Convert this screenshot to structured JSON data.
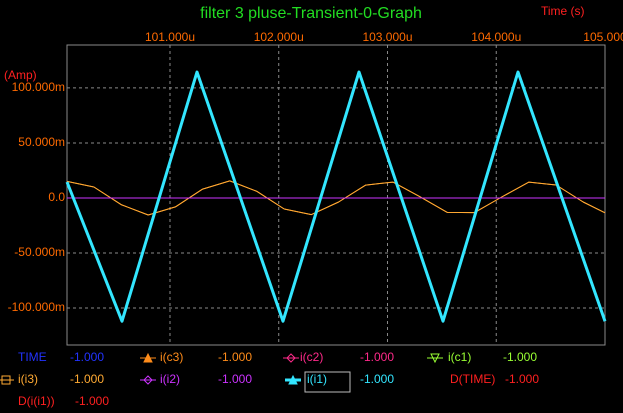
{
  "chart_data": {
    "type": "line",
    "title": "filter 3 pluse-Transient-0-Graph",
    "x_label": "Time  (s)",
    "y_label": "(Amp)",
    "xlim": [
      100.053,
      105
    ],
    "ylim": [
      -0.1336,
      0.139
    ],
    "xticks": [
      {
        "value": 101,
        "label": "101.000u"
      },
      {
        "value": 102,
        "label": "102.000u"
      },
      {
        "value": 103,
        "label": "103.000u"
      },
      {
        "value": 104,
        "label": "104.000u"
      },
      {
        "value": 105,
        "label": "105.000"
      }
    ],
    "yticks": [
      {
        "value": 0.1,
        "label": "100.000m"
      },
      {
        "value": 0.05,
        "label": "50.000m"
      },
      {
        "value": 0,
        "label": "0.0"
      },
      {
        "value": -0.05,
        "label": "-50.000m"
      },
      {
        "value": -0.1,
        "label": "-100.000m"
      }
    ],
    "grid": true,
    "series": [
      {
        "name": "i(c3)",
        "color": "#ff8c1a",
        "marker": "triangle",
        "reading": "-1.000",
        "x": [
          100.053,
          100.3,
          100.55,
          100.8,
          101.05,
          101.3,
          101.55,
          101.8,
          102.05,
          102.3,
          102.55,
          102.8,
          103.05,
          103.3,
          103.55,
          103.8,
          104.05,
          104.3,
          104.55,
          104.8,
          105.0
        ],
        "values": [
          0.0151,
          0.01,
          -0.006,
          -0.0155,
          -0.0081,
          0.0081,
          0.0155,
          0.006,
          -0.01,
          -0.0151,
          -0.0037,
          0.0117,
          0.0144,
          0.0011,
          -0.0131,
          -0.0133,
          0.0009,
          0.0144,
          0.0118,
          -0.0037,
          -0.0135
        ]
      },
      {
        "name": "i(c2)",
        "color": "#ff2a8a",
        "marker": "diamond",
        "reading": "-1.000",
        "x": [
          100.053,
          105
        ],
        "values": [
          0,
          0
        ]
      },
      {
        "name": "i(c1)",
        "color": "#99ff33",
        "marker": "triangle-down",
        "reading": "-1.000",
        "x": [
          100.053,
          105
        ],
        "values": [
          0,
          0
        ]
      },
      {
        "name": "i(i3)",
        "color": "#ffaa33",
        "marker": "square",
        "reading": "-1.000",
        "x": [
          100.053,
          100.3,
          100.55,
          100.8,
          101.05,
          101.3,
          101.55,
          101.8,
          102.05,
          102.3,
          102.55,
          102.8,
          103.05,
          103.3,
          103.55,
          103.8,
          104.05,
          104.3,
          104.55,
          104.8,
          105.0
        ],
        "values": [
          0.0151,
          0.01,
          -0.006,
          -0.0155,
          -0.0081,
          0.0081,
          0.0155,
          0.006,
          -0.01,
          -0.0151,
          -0.0037,
          0.0117,
          0.0144,
          0.0011,
          -0.0131,
          -0.0133,
          0.0009,
          0.0144,
          0.0118,
          -0.0037,
          -0.0135
        ]
      },
      {
        "name": "i(i2)",
        "color": "#cc33ff",
        "marker": "diamond",
        "reading": "-1.000",
        "x": [
          100.053,
          105
        ],
        "values": [
          0,
          0
        ]
      },
      {
        "name": "i(i1)",
        "color": "#33e6ff",
        "marker": "triangle",
        "reading": "-1.000",
        "x": [
          100.053,
          100.559,
          101.248,
          102.039,
          102.738,
          103.51,
          104.2,
          105.0
        ],
        "values": [
          0.0145,
          -0.112,
          0.1145,
          -0.112,
          0.1145,
          -0.112,
          0.1145,
          -0.112
        ]
      }
    ],
    "extra_readouts": [
      {
        "label": "TIME",
        "reading": "-1.000",
        "color": "#2233ff"
      },
      {
        "label": "D(TIME)",
        "reading": "-1.000",
        "color": "#ff2020"
      },
      {
        "label": "D(i(i1))",
        "reading": "-1.000",
        "color": "#ff2020"
      }
    ]
  }
}
